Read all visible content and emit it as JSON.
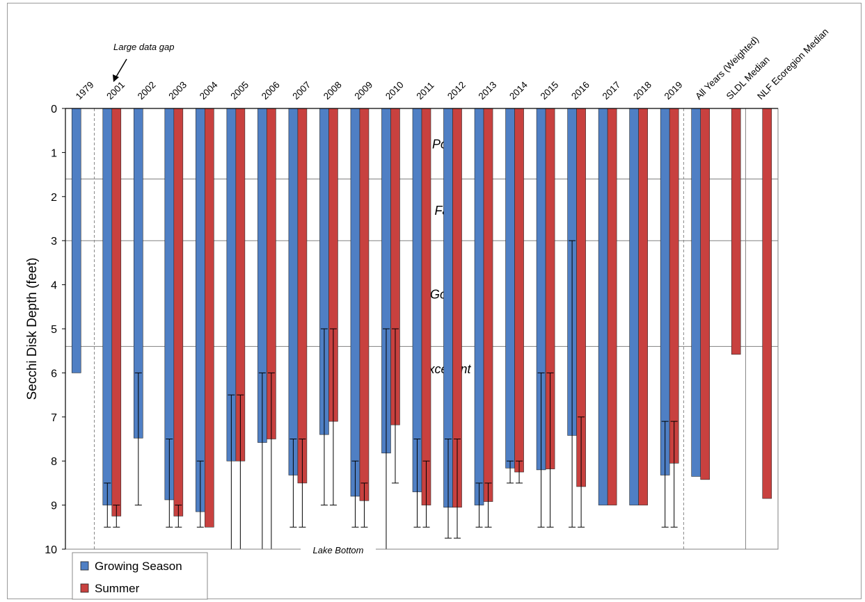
{
  "chart_data": {
    "type": "bar",
    "orientation": "hanging-from-top",
    "ylabel": "Secchi Disk Depth (feet)",
    "ylim": [
      0,
      10
    ],
    "y_inverted": true,
    "yticks": [
      "0",
      "1",
      "2",
      "3",
      "4",
      "5",
      "6",
      "7",
      "8",
      "9",
      "10"
    ],
    "categories": [
      "1979",
      "2001",
      "2002",
      "2003",
      "2004",
      "2005",
      "2006",
      "2007",
      "2008",
      "2009",
      "2010",
      "2011",
      "2012",
      "2013",
      "2014",
      "2015",
      "2016",
      "2017",
      "2018",
      "2019",
      "All Years (Weighted)",
      "SLDL Median",
      "NLF Ecoregion Median"
    ],
    "series": [
      {
        "name": "Growing Season",
        "color": "#4f7fc4",
        "values": [
          6.0,
          9.0,
          7.48,
          8.88,
          9.15,
          8.0,
          7.58,
          8.32,
          7.4,
          8.8,
          7.82,
          8.7,
          9.05,
          9.0,
          8.16,
          8.2,
          7.42,
          9.0,
          9.0,
          8.32,
          8.35,
          null,
          null
        ],
        "err_low": [
          null,
          8.5,
          6.0,
          7.5,
          8.0,
          6.5,
          6.0,
          7.5,
          5.0,
          8.0,
          5.0,
          7.5,
          7.5,
          8.5,
          8.0,
          6.0,
          3.0,
          null,
          null,
          7.1,
          null,
          null,
          null
        ],
        "err_high": [
          null,
          9.5,
          9.0,
          9.5,
          9.5,
          10.0,
          10.0,
          9.5,
          9.0,
          9.5,
          10.0,
          9.5,
          9.75,
          9.5,
          8.5,
          9.5,
          9.5,
          null,
          null,
          9.5,
          null,
          null,
          null
        ]
      },
      {
        "name": "Summer",
        "color": "#c8413f",
        "values": [
          null,
          9.25,
          null,
          9.25,
          9.5,
          8.0,
          7.5,
          8.5,
          7.1,
          8.9,
          7.18,
          9.0,
          9.05,
          8.92,
          8.25,
          8.18,
          8.58,
          9.0,
          9.0,
          8.05,
          8.42,
          5.58,
          8.85
        ],
        "err_low": [
          null,
          9.0,
          null,
          9.0,
          null,
          6.5,
          6.0,
          7.5,
          5.0,
          8.5,
          5.0,
          8.0,
          7.5,
          8.5,
          8.0,
          6.0,
          7.0,
          null,
          null,
          7.1,
          null,
          null,
          null
        ],
        "err_high": [
          null,
          9.5,
          null,
          9.5,
          null,
          10.0,
          10.0,
          9.5,
          9.0,
          9.5,
          8.5,
          9.5,
          9.75,
          9.5,
          8.5,
          9.5,
          9.5,
          null,
          null,
          9.5,
          null,
          null,
          null
        ]
      }
    ],
    "categories_bands": [
      {
        "label": "Poor",
        "boundary_below": 1.6
      },
      {
        "label": "Fair",
        "boundary_below": 3.0
      },
      {
        "label": "Good",
        "boundary_below": 5.4
      },
      {
        "label": "Excellent",
        "boundary_below": null
      }
    ],
    "annotations": {
      "data_gap": "Large data gap",
      "lake_bottom": "Lake Bottom"
    },
    "legend_position": "bottom-left",
    "grid": false
  }
}
